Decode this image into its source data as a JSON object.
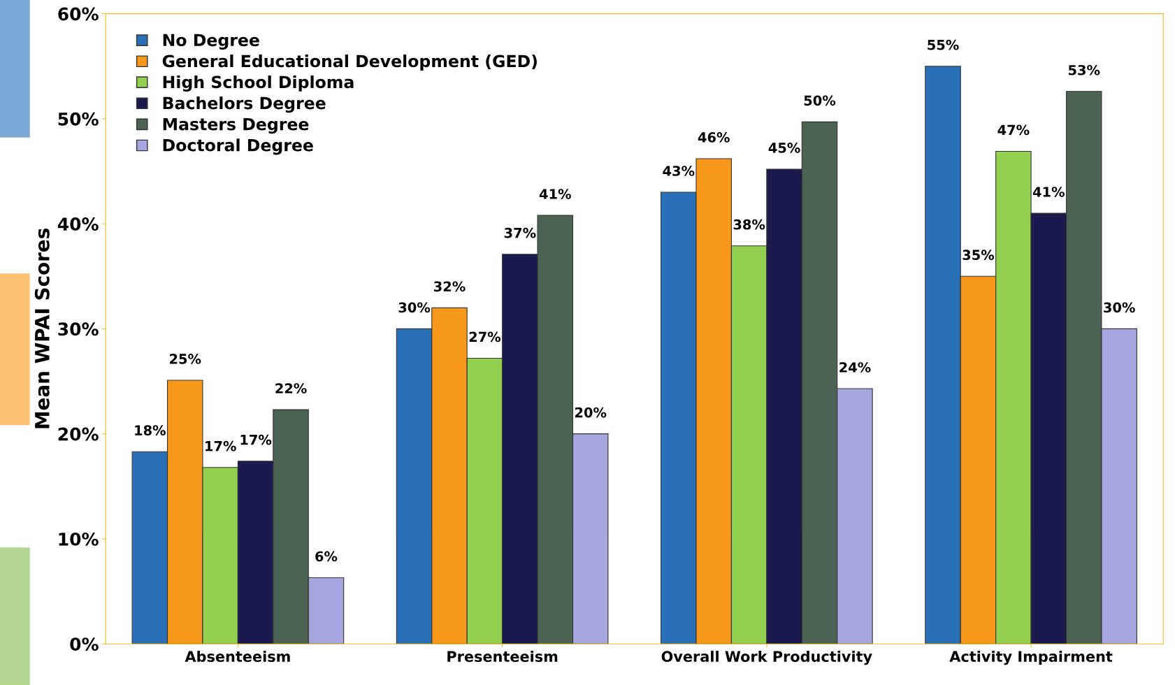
{
  "chart_data": {
    "type": "bar",
    "ylabel": "Mean WPAI Scores",
    "categories": [
      "Absenteeism",
      "Presenteeism",
      "Overall Work Productivity",
      "Activity Impairment"
    ],
    "series": [
      {
        "name": "No Degree",
        "color": "#2a70b8",
        "values": [
          18.3,
          30,
          43,
          55
        ],
        "value_labels": [
          "18%",
          "30%",
          "43%",
          "55%"
        ]
      },
      {
        "name": "General Educational Development (GED)",
        "color": "#f7981d",
        "values": [
          25.1,
          32,
          46.2,
          35
        ],
        "value_labels": [
          "25%",
          "32%",
          "46%",
          "35%"
        ]
      },
      {
        "name": "High School Diploma",
        "color": "#92d050",
        "values": [
          16.8,
          27.2,
          37.9,
          46.9
        ],
        "value_labels": [
          "17%",
          "27%",
          "38%",
          "47%"
        ]
      },
      {
        "name": "Bachelors Degree",
        "color": "#1a1a4e",
        "values": [
          17.4,
          37.1,
          45.2,
          41
        ],
        "value_labels": [
          "17%",
          "37%",
          "45%",
          "41%"
        ]
      },
      {
        "name": "Masters Degree",
        "color": "#4a6352",
        "values": [
          22.3,
          40.8,
          49.7,
          52.6
        ],
        "value_labels": [
          "22%",
          "41%",
          "50%",
          "53%"
        ]
      },
      {
        "name": "Doctoral Degree",
        "color": "#a6a6e0",
        "values": [
          6.3,
          20,
          24.3,
          30
        ],
        "value_labels": [
          "6%",
          "20%",
          "24%",
          "30%"
        ]
      }
    ],
    "ylim": [
      0,
      60
    ],
    "yticks": [
      {
        "value": 0,
        "label": "0%"
      },
      {
        "value": 10,
        "label": "10%"
      },
      {
        "value": 20,
        "label": "20%"
      },
      {
        "value": 30,
        "label": "30%"
      },
      {
        "value": 40,
        "label": "40%"
      },
      {
        "value": 50,
        "label": "50%"
      },
      {
        "value": 60,
        "label": "60%"
      }
    ],
    "grid": false,
    "legend": "top left"
  }
}
